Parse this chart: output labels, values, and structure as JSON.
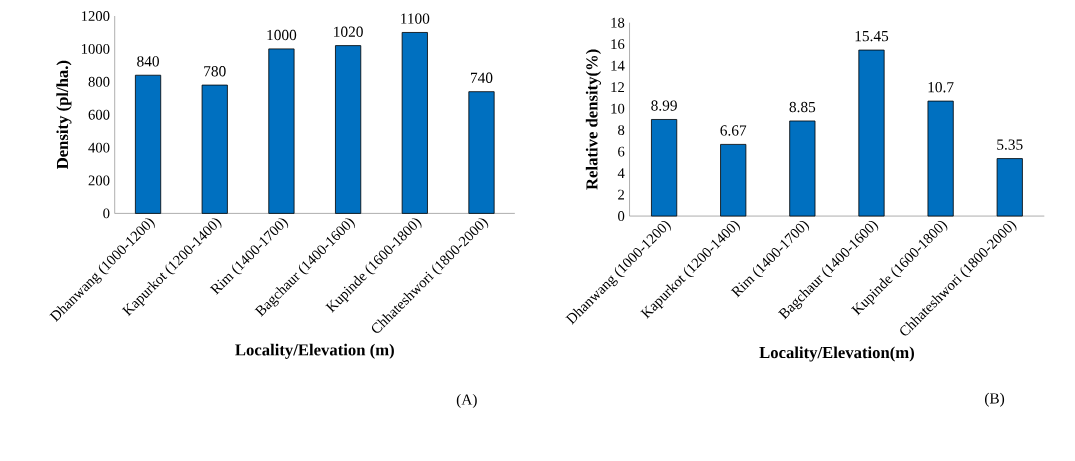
{
  "chart_data": [
    {
      "type": "bar",
      "categories": [
        "Dhanwang (1000-1200)",
        "Kapurkot (1200-1400)",
        "Rim (1400-1700)",
        "Bagchaur (1400-1600)",
        "Kupinde (1600-1800)",
        "Chhateshwori (1800-2000)"
      ],
      "values": [
        840,
        780,
        1000,
        1020,
        1100,
        740
      ],
      "color": "#0070c0",
      "data_labels": true,
      "ylim": [
        0,
        1200
      ],
      "yticks": [
        0,
        200,
        400,
        600,
        800,
        1000,
        1200
      ],
      "ylabel": "Density (pl/ha.)",
      "xlabel": "Locality/Elevation (m)",
      "annotations": [
        "(A)"
      ]
    },
    {
      "type": "bar",
      "categories": [
        "Dhanwang (1000-1200)",
        "Kapurkot (1200-1400)",
        "Rim (1400-1700)",
        "Bagchaur (1400-1600)",
        "Kupinde (1600-1800)",
        "Chhateshwori (1800-2000)"
      ],
      "values": [
        8.99,
        6.67,
        8.85,
        15.45,
        10.7,
        5.35
      ],
      "color": "#0070c0",
      "data_labels": true,
      "ylim": [
        0,
        18
      ],
      "yticks": [
        0,
        2,
        4,
        6,
        8,
        10,
        12,
        14,
        16,
        18
      ],
      "ylabel": "Relative density(%)",
      "xlabel": "Locality/Elevation(m)",
      "annotations": [
        "(B)"
      ]
    }
  ]
}
